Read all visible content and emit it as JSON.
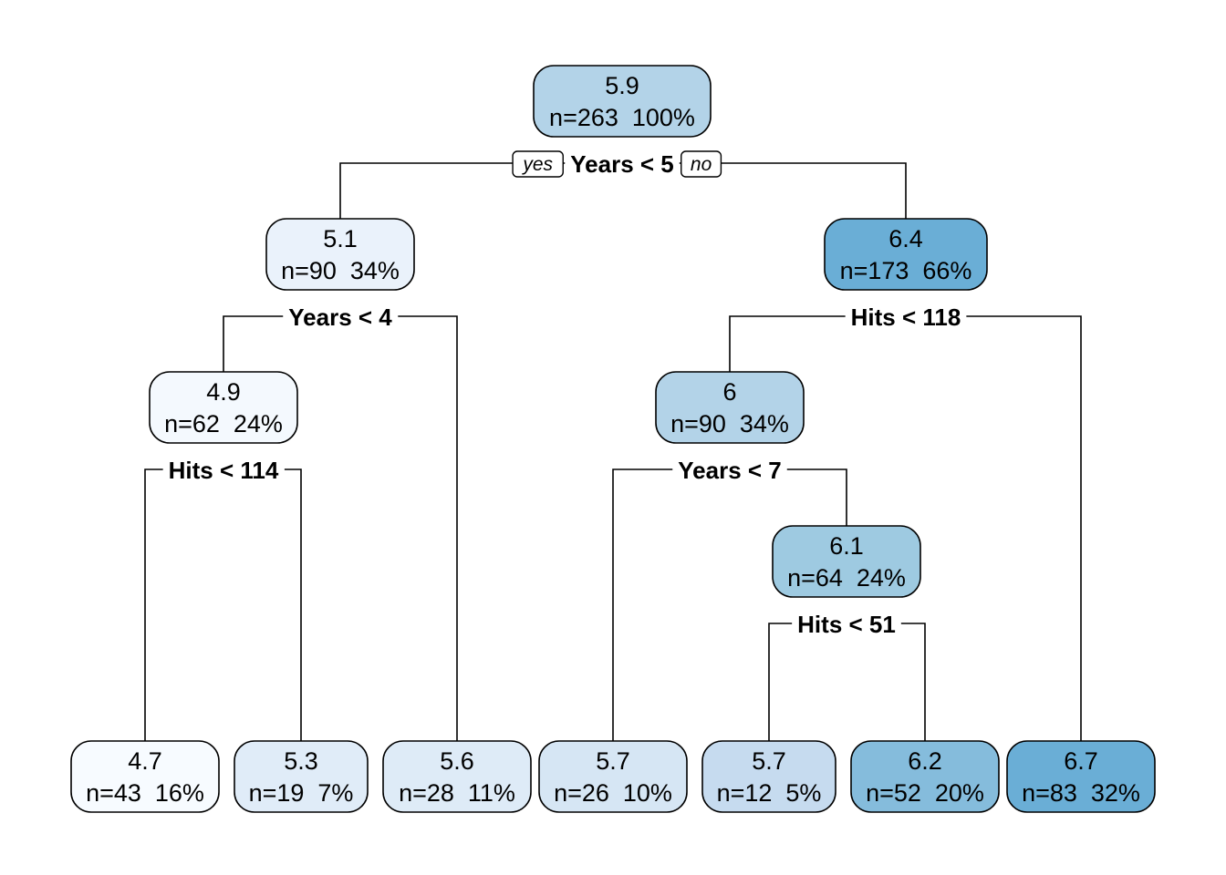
{
  "branch_labels": {
    "yes": "yes",
    "no": "no"
  },
  "colors": {
    "edge": "#000000",
    "node_border": "#000000",
    "scale_low": "#f7fbff",
    "scale_high": "#6aaed6"
  },
  "nodes": [
    {
      "id": "n1",
      "value": "5.9",
      "stats": "n=263  100%",
      "split": "Years < 5",
      "fill": "#b3d3e8"
    },
    {
      "id": "n2",
      "value": "5.1",
      "stats": "n=90  34%",
      "split": "Years < 4",
      "fill": "#eaf2fb"
    },
    {
      "id": "n3",
      "value": "6.4",
      "stats": "n=173  66%",
      "split": "Hits < 118",
      "fill": "#6aaed6"
    },
    {
      "id": "n4",
      "value": "4.9",
      "stats": "n=62  24%",
      "split": "Hits < 114",
      "fill": "#f4f9fe"
    },
    {
      "id": "n5",
      "value": "6",
      "stats": "n=90  34%",
      "split": "Years < 7",
      "fill": "#b3d3e8"
    },
    {
      "id": "n6",
      "value": "6.1",
      "stats": "n=64  24%",
      "split": "Hits < 51",
      "fill": "#9ecae1"
    },
    {
      "id": "l1",
      "value": "4.7",
      "stats": "n=43  16%",
      "split": "",
      "fill": "#f7fbff"
    },
    {
      "id": "l2",
      "value": "5.3",
      "stats": "n=19  7%",
      "split": "",
      "fill": "#e0ecf8"
    },
    {
      "id": "l3",
      "value": "5.6",
      "stats": "n=28  11%",
      "split": "",
      "fill": "#deebf7"
    },
    {
      "id": "l4",
      "value": "5.7",
      "stats": "n=26  10%",
      "split": "",
      "fill": "#d6e6f4"
    },
    {
      "id": "l5",
      "value": "5.7",
      "stats": "n=12  5%",
      "split": "",
      "fill": "#c6dbef"
    },
    {
      "id": "l6",
      "value": "6.2",
      "stats": "n=52  20%",
      "split": "",
      "fill": "#85bcdc"
    },
    {
      "id": "l7",
      "value": "6.7",
      "stats": "n=83  32%",
      "split": "",
      "fill": "#6aaed6"
    }
  ],
  "edges": [
    {
      "from": "n1",
      "to": "n2",
      "side": "left"
    },
    {
      "from": "n1",
      "to": "n3",
      "side": "right"
    },
    {
      "from": "n2",
      "to": "n4",
      "side": "left"
    },
    {
      "from": "n2",
      "to": "l3",
      "side": "right"
    },
    {
      "from": "n3",
      "to": "n5",
      "side": "left"
    },
    {
      "from": "n3",
      "to": "l7",
      "side": "right"
    },
    {
      "from": "n4",
      "to": "l1",
      "side": "left"
    },
    {
      "from": "n4",
      "to": "l2",
      "side": "right"
    },
    {
      "from": "n5",
      "to": "l4",
      "side": "left"
    },
    {
      "from": "n5",
      "to": "n6",
      "side": "right"
    },
    {
      "from": "n6",
      "to": "l5",
      "side": "left"
    },
    {
      "from": "n6",
      "to": "l6",
      "side": "right"
    }
  ]
}
